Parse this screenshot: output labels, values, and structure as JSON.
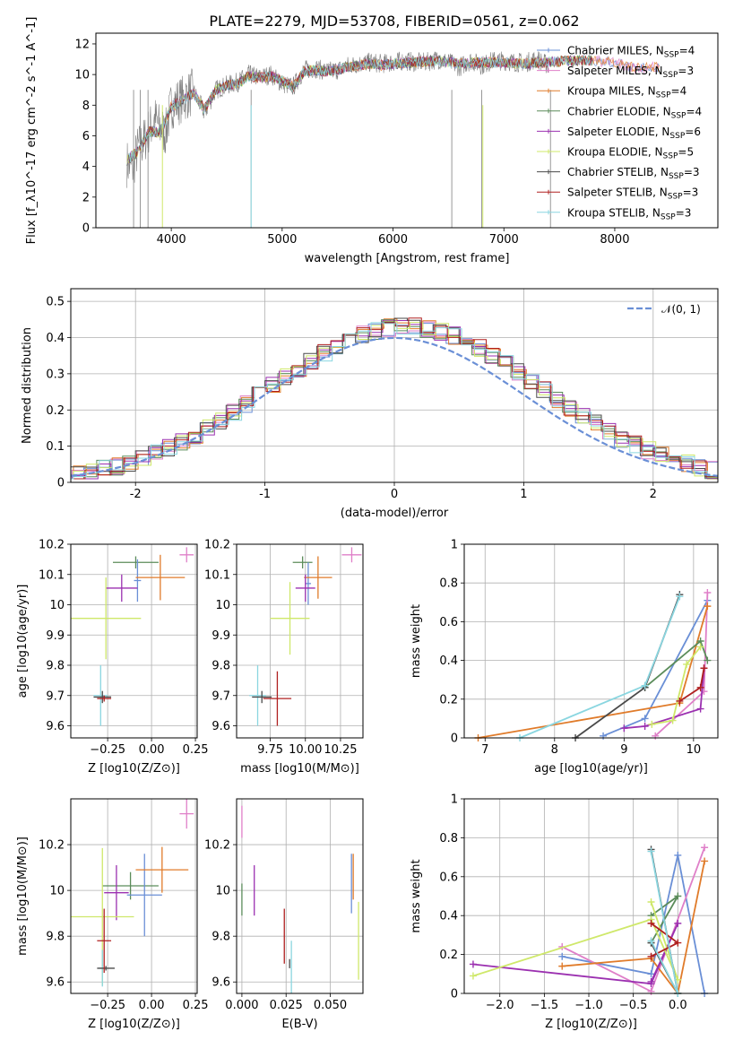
{
  "figure": {
    "title": "PLATE=2279, MJD=53708, FIBERID=0561, z=0.062"
  },
  "chart_data": [
    {
      "id": "spectrum",
      "type": "line",
      "title": "PLATE=2279, MJD=53708, FIBERID=0561, z=0.062",
      "xlabel": "wavelength [Angstrom, rest frame]",
      "ylabel": "Flux [f_λ10^-17 erg cm^-2 s^-1 A^-1]",
      "xlim": [
        3320,
        8930
      ],
      "ylim": [
        0,
        12.7
      ],
      "xticks": [
        4000,
        5000,
        6000,
        7000,
        8000
      ],
      "yticks": [
        0,
        2,
        4,
        6,
        8,
        10,
        12
      ],
      "grid": false,
      "legend_position": "right",
      "data_color": "#7f7f7f",
      "data_x": [
        3600,
        3650,
        3700,
        3750,
        3800,
        3850,
        3900,
        3950,
        4000,
        4100,
        4200,
        4300,
        4400,
        4500,
        4600,
        4700,
        4800,
        4900,
        5000,
        5100,
        5200,
        5300,
        5400,
        5500,
        5600,
        5700,
        5800,
        5900,
        6000,
        6100,
        6200,
        6300,
        6400,
        6500,
        6600,
        6700,
        6800,
        6900,
        7000,
        7100,
        7200,
        7300,
        7400
      ],
      "data_y": [
        4.2,
        3.9,
        5.2,
        5.6,
        6.4,
        7.1,
        6.5,
        6.2,
        8.0,
        8.4,
        8.9,
        7.5,
        9.0,
        9.3,
        9.5,
        10.0,
        9.8,
        10.0,
        9.4,
        9.2,
        10.3,
        10.4,
        10.2,
        10.3,
        10.6,
        10.7,
        10.8,
        10.7,
        10.8,
        10.9,
        10.8,
        10.8,
        11.0,
        10.8,
        10.5,
        10.9,
        10.6,
        10.9,
        10.9,
        10.8,
        10.8,
        11.0,
        10.6
      ],
      "model_x": [
        3600,
        3700,
        3800,
        3900,
        4000,
        4100,
        4200,
        4300,
        4400,
        4500,
        4600,
        4700,
        4800,
        4900,
        5000,
        5100,
        5200,
        5300,
        5400,
        5500,
        5600,
        5700,
        5800,
        5900,
        6000,
        6200,
        6400,
        6600,
        6800,
        7000,
        7200,
        7400,
        7600,
        7800,
        8000,
        8200,
        8400
      ],
      "model_y": [
        4.4,
        5.0,
        6.3,
        6.2,
        7.9,
        8.3,
        8.8,
        7.7,
        9.0,
        9.3,
        9.4,
        9.9,
        9.8,
        9.9,
        9.6,
        9.2,
        10.2,
        10.3,
        10.2,
        10.3,
        10.5,
        10.6,
        10.7,
        10.6,
        10.7,
        10.8,
        10.9,
        10.7,
        10.8,
        10.8,
        10.7,
        10.8,
        10.9,
        10.9,
        10.8,
        10.4,
        10.5
      ],
      "legend": [
        {
          "label": "Chabrier MILES, N",
          "sub": "SSP",
          "suffix": "=4",
          "color": "#6a8fd6"
        },
        {
          "label": "Salpeter MILES, N",
          "sub": "SSP",
          "suffix": "=3",
          "color": "#df7fc8"
        },
        {
          "label": "Kroupa MILES, N",
          "sub": "SSP",
          "suffix": "=4",
          "color": "#e07b2a"
        },
        {
          "label": "Chabrier ELODIE, N",
          "sub": "SSP",
          "suffix": "=4",
          "color": "#5b8c5a"
        },
        {
          "label": "Salpeter ELODIE, N",
          "sub": "SSP",
          "suffix": "=6",
          "color": "#9b30b0"
        },
        {
          "label": "Kroupa ELODIE, N",
          "sub": "SSP",
          "suffix": "=5",
          "color": "#cfe86a"
        },
        {
          "label": "Chabrier STELIB, N",
          "sub": "SSP",
          "suffix": "=3",
          "color": "#4a4a4a"
        },
        {
          "label": "Salpeter STELIB, N",
          "sub": "SSP",
          "suffix": "=3",
          "color": "#b02020"
        },
        {
          "label": "Kroupa STELIB, N",
          "sub": "SSP",
          "suffix": "=3",
          "color": "#8ad6e0"
        }
      ]
    },
    {
      "id": "residuals",
      "type": "line",
      "xlabel": "(data-model)/error",
      "ylabel": "Normed distribution",
      "xlim": [
        -2.5,
        2.5
      ],
      "ylim": [
        0,
        0.535
      ],
      "xticks": [
        -2,
        -1,
        0,
        1,
        2
      ],
      "yticks": [
        0.0,
        0.1,
        0.2,
        0.3,
        0.4,
        0.5
      ],
      "grid": true,
      "legend_position": "upper right",
      "normal_label": "𝒩(0, 1)",
      "normal_color": "#6a8fd6",
      "hist_bin_edges": [
        -2.6,
        -2.5,
        -2.4,
        -2.3,
        -2.2,
        -2.1,
        -2.0,
        -1.9,
        -1.8,
        -1.7,
        -1.6,
        -1.5,
        -1.4,
        -1.3,
        -1.2,
        -1.1,
        -1.0,
        -0.9,
        -0.8,
        -0.7,
        -0.6,
        -0.5,
        -0.4,
        -0.3,
        -0.2,
        -0.1,
        0.0,
        0.1,
        0.2,
        0.3,
        0.4,
        0.5,
        0.6,
        0.7,
        0.8,
        0.9,
        1.0,
        1.1,
        1.2,
        1.3,
        1.4,
        1.5,
        1.6,
        1.7,
        1.8,
        1.9,
        2.0,
        2.1,
        2.2,
        2.3,
        2.4,
        2.5,
        2.6
      ]
    },
    {
      "id": "age-vs-Z",
      "type": "scatter",
      "xlabel": "Z [log10(Z/Z⊙)]",
      "ylabel": "age  [log10(age/yr)]",
      "xlim": [
        -0.46,
        0.26
      ],
      "ylim": [
        9.56,
        10.2
      ],
      "xticks": [
        -0.25,
        0.0,
        0.25
      ],
      "xticklabels": [
        "−0.25",
        "0.00",
        "0.25"
      ],
      "yticks": [
        9.6,
        9.7,
        9.8,
        9.9,
        10.0,
        10.1,
        10.2
      ],
      "grid": true,
      "points": [
        {
          "x": 0.2,
          "y": 10.165,
          "xerr": 0.04,
          "yerr": 0.025,
          "color": "#df7fc8"
        },
        {
          "x": -0.09,
          "y": 10.14,
          "xerr": 0.13,
          "yerr": 0.02,
          "color": "#5b8c5a"
        },
        {
          "x": -0.08,
          "y": 10.08,
          "xerr": 0.02,
          "yerr": 0.07,
          "color": "#6a8fd6"
        },
        {
          "x": 0.05,
          "y": 10.09,
          "xerr": 0.14,
          "yerr": 0.075,
          "color": "#e07b2a"
        },
        {
          "x": -0.17,
          "y": 10.055,
          "xerr": 0.09,
          "yerr": 0.045,
          "color": "#9b30b0"
        },
        {
          "x": -0.26,
          "y": 9.955,
          "xerr": 0.2,
          "yerr": 0.135,
          "color": "#cfe86a"
        },
        {
          "x": -0.29,
          "y": 9.7,
          "xerr": 0.04,
          "yerr": 0.1,
          "color": "#8ad6e0"
        },
        {
          "x": -0.28,
          "y": 9.695,
          "xerr": 0.05,
          "yerr": 0.02,
          "color": "#4a4a4a"
        },
        {
          "x": -0.27,
          "y": 9.69,
          "xerr": 0.04,
          "yerr": 0.01,
          "color": "#b02020"
        }
      ]
    },
    {
      "id": "age-vs-mass",
      "type": "scatter",
      "xlabel": "mass [log10(M/M⊙)]",
      "xlim": [
        9.51,
        10.41
      ],
      "ylim": [
        9.56,
        10.2
      ],
      "xticks": [
        9.75,
        10.0,
        10.25
      ],
      "xticklabels": [
        "9.75",
        "10.00",
        "10.25"
      ],
      "yticks": [
        9.6,
        9.7,
        9.8,
        9.9,
        10.0,
        10.1,
        10.2
      ],
      "grid": true,
      "points": [
        {
          "x": 10.33,
          "y": 10.165,
          "xerr": 0.07,
          "yerr": 0.025,
          "color": "#df7fc8"
        },
        {
          "x": 9.98,
          "y": 10.14,
          "xerr": 0.07,
          "yerr": 0.02,
          "color": "#5b8c5a"
        },
        {
          "x": 10.02,
          "y": 10.07,
          "xerr": 0.02,
          "yerr": 0.07,
          "color": "#6a8fd6"
        },
        {
          "x": 10.09,
          "y": 10.09,
          "xerr": 0.1,
          "yerr": 0.07,
          "color": "#e07b2a"
        },
        {
          "x": 10.0,
          "y": 10.055,
          "xerr": 0.07,
          "yerr": 0.045,
          "color": "#9b30b0"
        },
        {
          "x": 9.89,
          "y": 9.955,
          "xerr": 0.14,
          "yerr": 0.12,
          "color": "#cfe86a"
        },
        {
          "x": 9.66,
          "y": 9.7,
          "xerr": 0.06,
          "yerr": 0.1,
          "color": "#8ad6e0"
        },
        {
          "x": 9.69,
          "y": 9.695,
          "xerr": 0.07,
          "yerr": 0.02,
          "color": "#4a4a4a"
        },
        {
          "x": 9.8,
          "y": 9.69,
          "xerr": 0.1,
          "yerr": 0.09,
          "color": "#b02020"
        }
      ]
    },
    {
      "id": "massweight-vs-age",
      "type": "line",
      "xlabel": "age  [log10(age/yr)]",
      "ylabel": "mass weight",
      "xlim": [
        6.7,
        10.35
      ],
      "ylim": [
        0,
        1.0
      ],
      "xticks": [
        7,
        8,
        9,
        10
      ],
      "yticks": [
        0.0,
        0.2,
        0.4,
        0.6,
        0.8,
        1.0
      ],
      "grid": true,
      "series": [
        {
          "color": "#6a8fd6",
          "x": [
            8.7,
            9.3,
            10.2
          ],
          "y": [
            0.01,
            0.1,
            0.71
          ]
        },
        {
          "color": "#df7fc8",
          "x": [
            9.45,
            10.15,
            10.2
          ],
          "y": [
            0.01,
            0.24,
            0.75
          ]
        },
        {
          "color": "#e07b2a",
          "x": [
            6.9,
            9.8,
            10.2
          ],
          "y": [
            0.0,
            0.18,
            0.68
          ]
        },
        {
          "color": "#5b8c5a",
          "x": [
            9.3,
            10.1,
            10.2
          ],
          "y": [
            0.26,
            0.5,
            0.4
          ]
        },
        {
          "color": "#9b30b0",
          "x": [
            9.0,
            9.3,
            10.1,
            10.15
          ],
          "y": [
            0.05,
            0.06,
            0.15,
            0.36
          ]
        },
        {
          "color": "#cfe86a",
          "x": [
            9.4,
            9.7,
            9.9,
            10.1
          ],
          "y": [
            0.07,
            0.09,
            0.38,
            0.47
          ]
        },
        {
          "color": "#4a4a4a",
          "x": [
            8.3,
            9.3,
            9.8
          ],
          "y": [
            0.0,
            0.26,
            0.74
          ]
        },
        {
          "color": "#b02020",
          "x": [
            9.8,
            10.1,
            10.15
          ],
          "y": [
            0.19,
            0.26,
            0.36
          ]
        },
        {
          "color": "#8ad6e0",
          "x": [
            7.5,
            9.3,
            9.8
          ],
          "y": [
            0.0,
            0.27,
            0.73
          ]
        }
      ]
    },
    {
      "id": "mass-vs-Z",
      "type": "scatter",
      "xlabel": "Z [log10(Z/Z⊙)]",
      "ylabel": "mass [log10(M/M⊙)]",
      "xlim": [
        -0.46,
        0.26
      ],
      "ylim": [
        9.55,
        10.4
      ],
      "xticks": [
        -0.25,
        0.0,
        0.25
      ],
      "xticklabels": [
        "−0.25",
        "0.00",
        "0.25"
      ],
      "yticks": [
        9.6,
        9.8,
        10.0,
        10.2
      ],
      "grid": true,
      "points": [
        {
          "x": 0.2,
          "y": 10.335,
          "xerr": 0.04,
          "yerr": 0.065,
          "color": "#df7fc8"
        },
        {
          "x": -0.12,
          "y": 10.02,
          "xerr": 0.16,
          "yerr": 0.06,
          "color": "#5b8c5a"
        },
        {
          "x": -0.04,
          "y": 9.98,
          "xerr": 0.1,
          "yerr": 0.18,
          "color": "#6a8fd6"
        },
        {
          "x": 0.06,
          "y": 10.09,
          "xerr": 0.15,
          "yerr": 0.1,
          "color": "#e07b2a"
        },
        {
          "x": -0.2,
          "y": 9.99,
          "xerr": 0.07,
          "yerr": 0.12,
          "color": "#9b30b0"
        },
        {
          "x": -0.28,
          "y": 9.885,
          "xerr": 0.18,
          "yerr": 0.3,
          "color": "#cfe86a"
        },
        {
          "x": -0.28,
          "y": 9.66,
          "xerr": 0.02,
          "yerr": 0.08,
          "color": "#8ad6e0"
        },
        {
          "x": -0.26,
          "y": 9.66,
          "xerr": 0.05,
          "yerr": 0.01,
          "color": "#4a4a4a"
        },
        {
          "x": -0.27,
          "y": 9.78,
          "xerr": 0.04,
          "yerr": 0.14,
          "color": "#b02020"
        }
      ]
    },
    {
      "id": "mass-vs-EBV",
      "type": "scatter",
      "xlabel": "E(B-V)",
      "xlim": [
        -0.003,
        0.0685
      ],
      "ylim": [
        9.55,
        10.4
      ],
      "xticks": [
        0.0,
        0.025,
        0.05
      ],
      "xticklabels": [
        "0.000",
        "0.025",
        "0.050"
      ],
      "yticks": [
        9.6,
        9.8,
        10.0,
        10.2
      ],
      "grid": true,
      "points": [
        {
          "x": 0.0,
          "y": 10.3,
          "xerr": 0,
          "yerr": 0.07,
          "color": "#df7fc8"
        },
        {
          "x": 0.0,
          "y": 9.96,
          "xerr": 0,
          "yerr": 0.07,
          "color": "#5b8c5a"
        },
        {
          "x": 0.062,
          "y": 10.03,
          "xerr": 0,
          "yerr": 0.13,
          "color": "#6a8fd6"
        },
        {
          "x": 0.063,
          "y": 10.06,
          "xerr": 0,
          "yerr": 0.1,
          "color": "#e07b2a"
        },
        {
          "x": 0.007,
          "y": 10.0,
          "xerr": 0,
          "yerr": 0.11,
          "color": "#9b30b0"
        },
        {
          "x": 0.066,
          "y": 9.78,
          "xerr": 0,
          "yerr": 0.17,
          "color": "#cfe86a"
        },
        {
          "x": 0.028,
          "y": 9.66,
          "xerr": 0,
          "yerr": 0.12,
          "color": "#8ad6e0"
        },
        {
          "x": 0.027,
          "y": 9.68,
          "xerr": 0,
          "yerr": 0.02,
          "color": "#4a4a4a"
        },
        {
          "x": 0.024,
          "y": 9.8,
          "xerr": 0,
          "yerr": 0.12,
          "color": "#b02020"
        }
      ]
    },
    {
      "id": "massweight-vs-Z",
      "type": "line",
      "xlabel": "Z [log10(Z/Z⊙)]",
      "ylabel": "mass weight",
      "xlim": [
        -2.4,
        0.45
      ],
      "ylim": [
        0,
        1.0
      ],
      "xticks": [
        -2.0,
        -1.5,
        -1.0,
        -0.5,
        0.0
      ],
      "xticklabels": [
        "−2.0",
        "−1.5",
        "−1.0",
        "−0.5",
        "0.0"
      ],
      "yticks": [
        0.0,
        0.2,
        0.4,
        0.6,
        0.8,
        1.0
      ],
      "grid": true,
      "series": [
        {
          "color": "#6a8fd6",
          "x": [
            -1.3,
            -0.3,
            0.0,
            0.3
          ],
          "y": [
            0.19,
            0.1,
            0.71,
            0.0
          ]
        },
        {
          "color": "#df7fc8",
          "x": [
            -1.3,
            -0.3,
            0.3
          ],
          "y": [
            0.24,
            0.01,
            0.75
          ]
        },
        {
          "color": "#e07b2a",
          "x": [
            -1.3,
            -0.3,
            0.0,
            0.3
          ],
          "y": [
            0.14,
            0.18,
            0.0,
            0.68
          ]
        },
        {
          "color": "#5b8c5a",
          "x": [
            -0.3,
            0.0,
            -0.3
          ],
          "y": [
            0.4,
            0.5,
            0.26
          ]
        },
        {
          "color": "#9b30b0",
          "x": [
            -2.3,
            -0.3,
            0.0,
            -0.3
          ],
          "y": [
            0.15,
            0.05,
            0.36,
            0.06
          ]
        },
        {
          "color": "#cfe86a",
          "x": [
            -2.3,
            -0.3,
            0.0,
            -0.3
          ],
          "y": [
            0.09,
            0.38,
            0.07,
            0.47
          ]
        },
        {
          "color": "#4a4a4a",
          "x": [
            -0.3,
            0.0,
            -0.3
          ],
          "y": [
            0.74,
            0.0,
            0.26
          ]
        },
        {
          "color": "#b02020",
          "x": [
            -0.3,
            0.0,
            -0.3
          ],
          "y": [
            0.19,
            0.26,
            0.36
          ]
        },
        {
          "color": "#8ad6e0",
          "x": [
            -0.3,
            0.0,
            -0.3
          ],
          "y": [
            0.73,
            0.0,
            0.27
          ]
        }
      ]
    }
  ]
}
